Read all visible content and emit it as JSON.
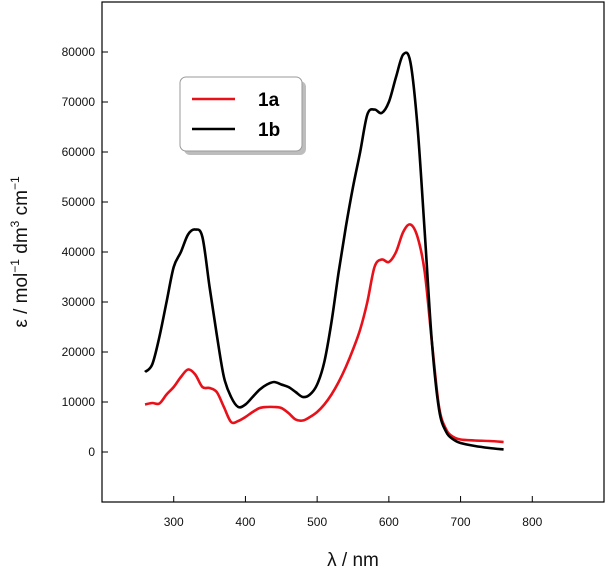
{
  "chart_data": {
    "type": "line",
    "title": "",
    "xlabel": "λ / nm",
    "ylabel_parts": {
      "base": "ε / mol",
      "sup1": "−1",
      "mid": " dm",
      "sup2": "3",
      "mid2": " cm",
      "sup3": "−1"
    },
    "xlim": [
      200,
      900
    ],
    "ylim": [
      -10000,
      90000
    ],
    "xticks": [
      300,
      400,
      500,
      600,
      700,
      800
    ],
    "xtick_labels": [
      "300",
      "400",
      "500",
      "600",
      "700",
      "800"
    ],
    "yticks": [
      0,
      10000,
      20000,
      30000,
      40000,
      50000,
      60000,
      70000,
      80000
    ],
    "ytick_labels": [
      "0",
      "10000",
      "20000",
      "30000",
      "40000",
      "50000",
      "60000",
      "70000",
      "80000"
    ],
    "grid": false,
    "legend_position": "top-left",
    "series": [
      {
        "name": "1a",
        "color": "#e8111a",
        "x": [
          260,
          270,
          280,
          290,
          300,
          310,
          320,
          330,
          340,
          350,
          360,
          370,
          380,
          390,
          400,
          410,
          420,
          430,
          440,
          450,
          460,
          470,
          480,
          490,
          500,
          510,
          520,
          530,
          540,
          550,
          560,
          570,
          580,
          590,
          600,
          610,
          620,
          630,
          640,
          650,
          660,
          670,
          680,
          690,
          700,
          720,
          740,
          760
        ],
        "y": [
          9500,
          9800,
          9700,
          11500,
          13000,
          15000,
          16500,
          15500,
          13000,
          12800,
          12000,
          9000,
          6000,
          6200,
          7000,
          8000,
          8800,
          9000,
          9000,
          8800,
          7800,
          6500,
          6300,
          7000,
          8000,
          9500,
          11500,
          14000,
          17000,
          20500,
          24500,
          30000,
          37000,
          38500,
          38000,
          40000,
          44000,
          45500,
          43000,
          36000,
          22000,
          9000,
          4500,
          3000,
          2500,
          2300,
          2200,
          2000
        ]
      },
      {
        "name": "1b",
        "color": "#000000",
        "x": [
          260,
          270,
          280,
          290,
          300,
          310,
          320,
          330,
          340,
          350,
          360,
          370,
          380,
          390,
          400,
          410,
          420,
          430,
          440,
          450,
          460,
          470,
          480,
          490,
          500,
          510,
          520,
          530,
          540,
          550,
          560,
          570,
          580,
          590,
          600,
          610,
          620,
          630,
          640,
          650,
          660,
          670,
          680,
          690,
          700,
          720,
          740,
          760
        ],
        "y": [
          16000,
          17500,
          23000,
          30000,
          37000,
          40000,
          43500,
          44500,
          43000,
          33000,
          23500,
          15000,
          11000,
          9000,
          9500,
          11000,
          12500,
          13500,
          14000,
          13500,
          13000,
          12000,
          11000,
          11500,
          13500,
          18000,
          26000,
          36000,
          45000,
          53000,
          60000,
          67500,
          68500,
          67800,
          70000,
          75000,
          79500,
          78000,
          65000,
          44000,
          22000,
          8500,
          4000,
          2500,
          1800,
          1200,
          800,
          500
        ]
      }
    ]
  }
}
